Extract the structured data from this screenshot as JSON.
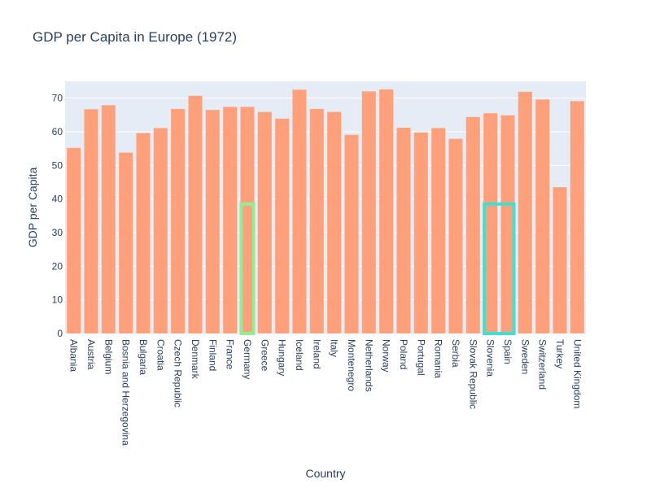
{
  "chart_data": {
    "type": "bar",
    "title": "GDP per Capita in Europe (1972)",
    "xlabel": "Country",
    "ylabel": "GDP per Capita",
    "ylim": [
      0,
      75
    ],
    "yticks": [
      0,
      10,
      20,
      30,
      40,
      50,
      60,
      70
    ],
    "grid": true,
    "categories": [
      "Albania",
      "Austria",
      "Belgium",
      "Bosnia and Herzegovina",
      "Bulgaria",
      "Croatia",
      "Czech Republic",
      "Denmark",
      "Finland",
      "France",
      "Germany",
      "Greece",
      "Hungary",
      "Iceland",
      "Ireland",
      "Italy",
      "Montenegro",
      "Netherlands",
      "Norway",
      "Poland",
      "Portugal",
      "Romania",
      "Serbia",
      "Slovak Republic",
      "Slovenia",
      "Spain",
      "Sweden",
      "Switzerland",
      "Turkey",
      "United Kingdom"
    ],
    "values": [
      55.2,
      66.7,
      67.9,
      53.8,
      59.6,
      61.1,
      66.8,
      70.7,
      66.5,
      67.4,
      67.4,
      65.9,
      63.9,
      72.5,
      66.8,
      65.9,
      59.1,
      72.0,
      72.6,
      61.2,
      59.8,
      61.1,
      57.9,
      64.4,
      65.5,
      64.9,
      71.9,
      69.6,
      43.5,
      69.1
    ],
    "highlights": [
      {
        "categories": [
          "Germany"
        ],
        "y_range": [
          0,
          38.5
        ],
        "color": "#90ee90"
      },
      {
        "categories": [
          "Slovenia",
          "Spain"
        ],
        "y_range": [
          0,
          38.5
        ],
        "color": "#40e0d0"
      }
    ],
    "colors": {
      "bar": "#ffa07a",
      "plot_background": "#e5ecf6",
      "grid": "#ffffff",
      "text": "#2a3f5f"
    }
  }
}
